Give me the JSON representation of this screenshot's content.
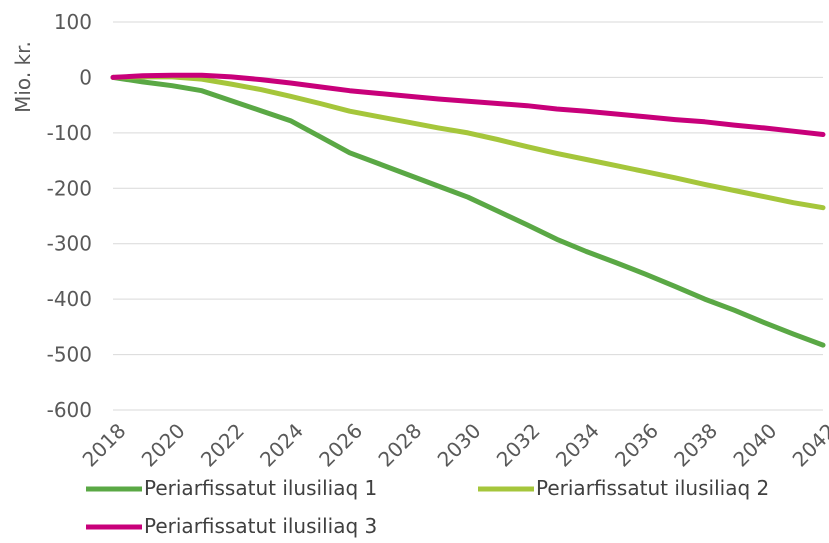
{
  "chart_data": {
    "type": "line",
    "title": "",
    "xlabel": "",
    "ylabel": "Mio. kr.",
    "ylim": [
      -600,
      100
    ],
    "yticks": [
      100,
      0,
      -100,
      -200,
      -300,
      -400,
      -500,
      -600
    ],
    "xlim": [
      2018,
      2042
    ],
    "xticks": [
      "2018",
      "2020",
      "2022",
      "2024",
      "2026",
      "2028",
      "2030",
      "2032",
      "2034",
      "2036",
      "2038",
      "2040",
      "2042"
    ],
    "grid": true,
    "legend_position": "bottom",
    "x": [
      2018,
      2019,
      2020,
      2021,
      2022,
      2023,
      2024,
      2025,
      2026,
      2027,
      2028,
      2029,
      2030,
      2031,
      2032,
      2033,
      2034,
      2035,
      2036,
      2037,
      2038,
      2039,
      2040,
      2041,
      2042
    ],
    "series": [
      {
        "name": "Periarfissatut ilusiliaq 1",
        "color": "#5aa845",
        "values": [
          0,
          -8,
          -15,
          -24,
          -42,
          -60,
          -78,
          -107,
          -136,
          -156,
          -176,
          -196,
          -216,
          -241,
          -266,
          -292,
          -314,
          -334,
          -355,
          -377,
          -400,
          -420,
          -442,
          -463,
          -483
        ]
      },
      {
        "name": "Periarfissatut ilusiliaq 2",
        "color": "#a5c63b",
        "values": [
          0,
          1,
          1,
          -3,
          -12,
          -22,
          -34,
          -47,
          -61,
          -71,
          -81,
          -91,
          -100,
          -112,
          -125,
          -137,
          -148,
          -159,
          -170,
          -181,
          -193,
          -204,
          -215,
          -226,
          -235
        ]
      },
      {
        "name": "Periarfissatut ilusiliaq 3",
        "color": "#c8007a",
        "values": [
          0,
          3,
          4,
          4,
          1,
          -4,
          -10,
          -17,
          -24,
          -29,
          -34,
          -39,
          -43,
          -47,
          -51,
          -57,
          -61,
          -66,
          -71,
          -76,
          -80,
          -86,
          -91,
          -97,
          -103
        ]
      }
    ]
  }
}
